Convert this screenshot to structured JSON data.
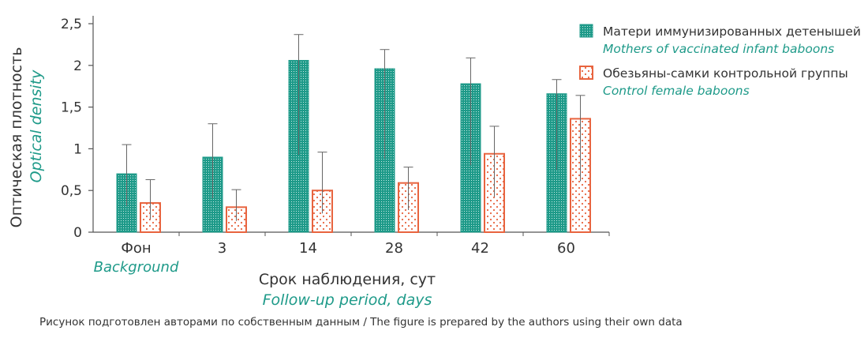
{
  "colors": {
    "series_a": "#1e9a89",
    "series_b": "#e8643f",
    "axis": "#555555",
    "english_text": "#1e9a89"
  },
  "chart_data": {
    "type": "bar",
    "categories": [
      "Фон",
      "3",
      "14",
      "28",
      "42",
      "60"
    ],
    "categories_en": [
      "Background",
      "",
      "",
      "",
      "",
      ""
    ],
    "series": [
      {
        "name": "Матери иммунизированных детенышей",
        "name_en": "Mothers of vaccinated infant baboons",
        "values": [
          0.7,
          0.9,
          2.06,
          1.96,
          1.78,
          1.66
        ],
        "error_upper": [
          1.05,
          1.3,
          2.37,
          2.19,
          2.09,
          1.83
        ],
        "pattern": "dense-hatch"
      },
      {
        "name": "Обезьяны-самки контрольной группы",
        "name_en": "Control female baboons",
        "values": [
          0.35,
          0.3,
          0.5,
          0.59,
          0.94,
          1.36
        ],
        "error_upper": [
          0.63,
          0.51,
          0.96,
          0.78,
          1.27,
          1.64
        ],
        "pattern": "dotted"
      }
    ],
    "y_ticks": [
      "0",
      "0,5",
      "1",
      "1,5",
      "2",
      "2,5"
    ],
    "ylim": [
      0,
      2.5
    ],
    "ylabel": "Оптическая плотность",
    "ylabel_en": "Optical density",
    "xlabel": "Срок наблюдения, сут",
    "xlabel_en": "Follow-up period, days",
    "legend_position": "top-right",
    "grid": false
  },
  "caption": "Рисунок подготовлен авторами по собственным данным / The figure is prepared by the authors using their own data"
}
